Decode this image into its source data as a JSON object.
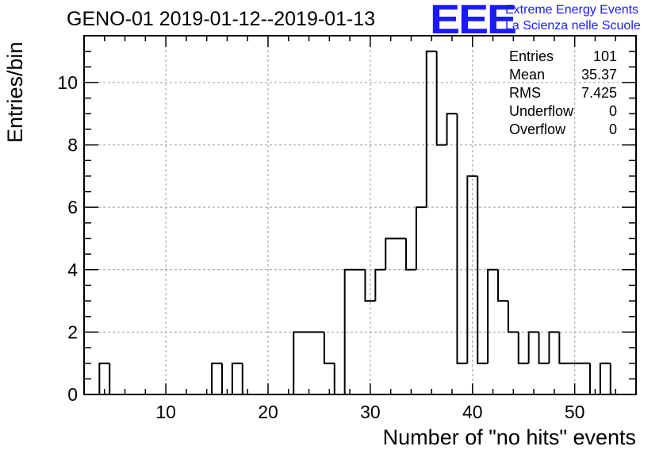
{
  "title": "GENO-01 2019-01-12--2019-01-13",
  "logo": {
    "mark": "EEE",
    "line1": "Extreme Energy Events",
    "line2": "La Scienza nelle Scuole",
    "color": "#1a1aff"
  },
  "stats": {
    "rows": [
      {
        "label": "Entries",
        "value": "101"
      },
      {
        "label": "Mean",
        "value": "35.37"
      },
      {
        "label": "RMS",
        "value": "7.425"
      },
      {
        "label": "Underflow",
        "value": "0"
      },
      {
        "label": "Overflow",
        "value": "0"
      }
    ]
  },
  "chart_data": {
    "type": "bar",
    "title": "GENO-01 2019-01-12--2019-01-13",
    "xlabel": "Number of \"no hits\" events",
    "ylabel": "Entries/bin",
    "xlim": [
      2,
      56
    ],
    "ylim": [
      0,
      11.5
    ],
    "bin_width": 1,
    "xticks": [
      10,
      20,
      30,
      40,
      50
    ],
    "yticks": [
      0,
      2,
      4,
      6,
      8,
      10
    ],
    "grid": true,
    "bins": [
      {
        "x": 3,
        "value": 0
      },
      {
        "x": 4,
        "value": 1
      },
      {
        "x": 5,
        "value": 0
      },
      {
        "x": 6,
        "value": 0
      },
      {
        "x": 7,
        "value": 0
      },
      {
        "x": 8,
        "value": 0
      },
      {
        "x": 9,
        "value": 0
      },
      {
        "x": 10,
        "value": 0
      },
      {
        "x": 11,
        "value": 0
      },
      {
        "x": 12,
        "value": 0
      },
      {
        "x": 13,
        "value": 0
      },
      {
        "x": 14,
        "value": 0
      },
      {
        "x": 15,
        "value": 1
      },
      {
        "x": 16,
        "value": 0
      },
      {
        "x": 17,
        "value": 1
      },
      {
        "x": 18,
        "value": 0
      },
      {
        "x": 19,
        "value": 0
      },
      {
        "x": 20,
        "value": 0
      },
      {
        "x": 21,
        "value": 0
      },
      {
        "x": 22,
        "value": 0
      },
      {
        "x": 23,
        "value": 2
      },
      {
        "x": 24,
        "value": 2
      },
      {
        "x": 25,
        "value": 2
      },
      {
        "x": 26,
        "value": 1
      },
      {
        "x": 27,
        "value": 0
      },
      {
        "x": 28,
        "value": 4
      },
      {
        "x": 29,
        "value": 4
      },
      {
        "x": 30,
        "value": 3
      },
      {
        "x": 31,
        "value": 4
      },
      {
        "x": 32,
        "value": 5
      },
      {
        "x": 33,
        "value": 5
      },
      {
        "x": 34,
        "value": 4
      },
      {
        "x": 35,
        "value": 6
      },
      {
        "x": 36,
        "value": 11
      },
      {
        "x": 37,
        "value": 8
      },
      {
        "x": 38,
        "value": 9
      },
      {
        "x": 39,
        "value": 1
      },
      {
        "x": 40,
        "value": 7
      },
      {
        "x": 41,
        "value": 1
      },
      {
        "x": 42,
        "value": 4
      },
      {
        "x": 43,
        "value": 3
      },
      {
        "x": 44,
        "value": 2
      },
      {
        "x": 45,
        "value": 1
      },
      {
        "x": 46,
        "value": 2
      },
      {
        "x": 47,
        "value": 1
      },
      {
        "x": 48,
        "value": 2
      },
      {
        "x": 49,
        "value": 1
      },
      {
        "x": 50,
        "value": 1
      },
      {
        "x": 51,
        "value": 1
      },
      {
        "x": 52,
        "value": 0
      },
      {
        "x": 53,
        "value": 1
      },
      {
        "x": 54,
        "value": 0
      }
    ]
  }
}
